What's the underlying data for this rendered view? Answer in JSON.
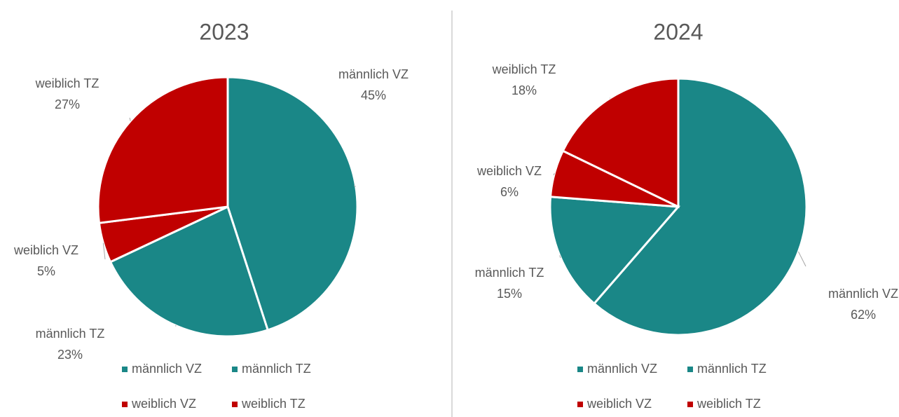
{
  "chart_data": [
    {
      "type": "pie",
      "title": "2023",
      "categories": [
        "männlich VZ",
        "männlich TZ",
        "weiblich VZ",
        "weiblich TZ"
      ],
      "values": [
        45,
        23,
        5,
        27
      ],
      "value_labels": [
        "45%",
        "23%",
        "5%",
        "27%"
      ],
      "colors": [
        "#1a8787",
        "#1a8787",
        "#c00000",
        "#c00000"
      ],
      "legend": "bottom"
    },
    {
      "type": "pie",
      "title": "2024",
      "categories": [
        "männlich VZ",
        "männlich TZ",
        "weiblich VZ",
        "weiblich TZ"
      ],
      "values": [
        62,
        15,
        6,
        18
      ],
      "value_labels": [
        "62%",
        "15%",
        "6%",
        "18%"
      ],
      "colors": [
        "#1a8787",
        "#1a8787",
        "#c00000",
        "#c00000"
      ],
      "legend": "bottom"
    }
  ]
}
